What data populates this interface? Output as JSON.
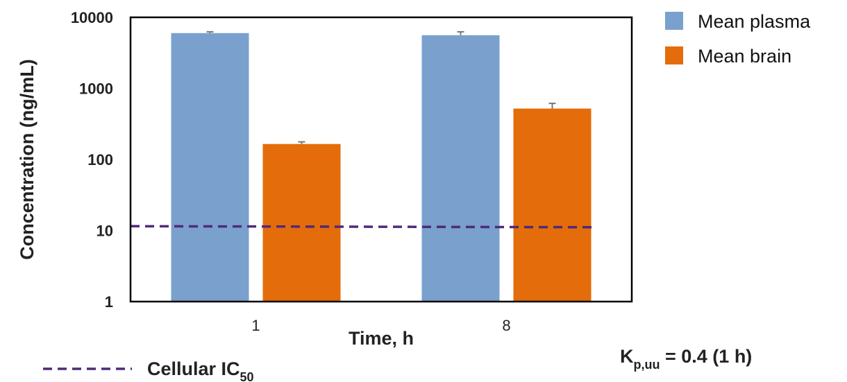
{
  "chart_data": {
    "type": "bar",
    "y_scale": "log",
    "ylim": [
      1,
      10000
    ],
    "yticks": [
      "1",
      "10",
      "100",
      "1000",
      "10000"
    ],
    "categories": [
      "1",
      "8"
    ],
    "xlabel": "Time, h",
    "ylabel": "Concentration (ng/mL)",
    "grid": false,
    "legend_position": "top-right",
    "series": [
      {
        "name": "Mean plasma",
        "color": "#7aa0cd",
        "values": [
          6000,
          5600
        ],
        "error_plus": [
          250,
          650
        ]
      },
      {
        "name": "Mean brain",
        "color": "#e46c0a",
        "values": [
          165,
          520
        ],
        "error_plus": [
          12,
          95
        ]
      }
    ],
    "reference_line": {
      "y": 11.5,
      "color": "#4f2a7a",
      "style": "dashed"
    },
    "annotations": {
      "ref_label": {
        "main": "Cellular IC",
        "sub": "50"
      },
      "kp_label": {
        "main": "K",
        "sub": "p,uu",
        "rest": " = 0.4 (1 h)"
      }
    }
  }
}
